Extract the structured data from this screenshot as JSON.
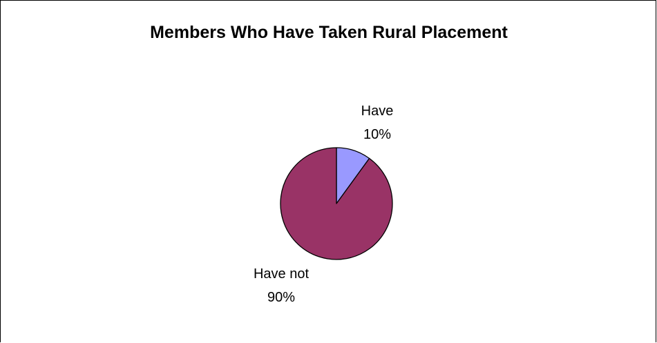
{
  "chart_data": {
    "type": "pie",
    "title": "Members Who Have Taken Rural Placement",
    "slices": [
      {
        "label": "Have",
        "value": 10,
        "value_label": "10%",
        "color": "#9999ff"
      },
      {
        "label": "Have not",
        "value": 90,
        "value_label": "90%",
        "color": "#993366"
      }
    ],
    "start_position": "12 o'clock, clockwise",
    "slice_border_color": "#000000",
    "legend": "none",
    "data_labels": "category name and percentage, outside slices"
  }
}
